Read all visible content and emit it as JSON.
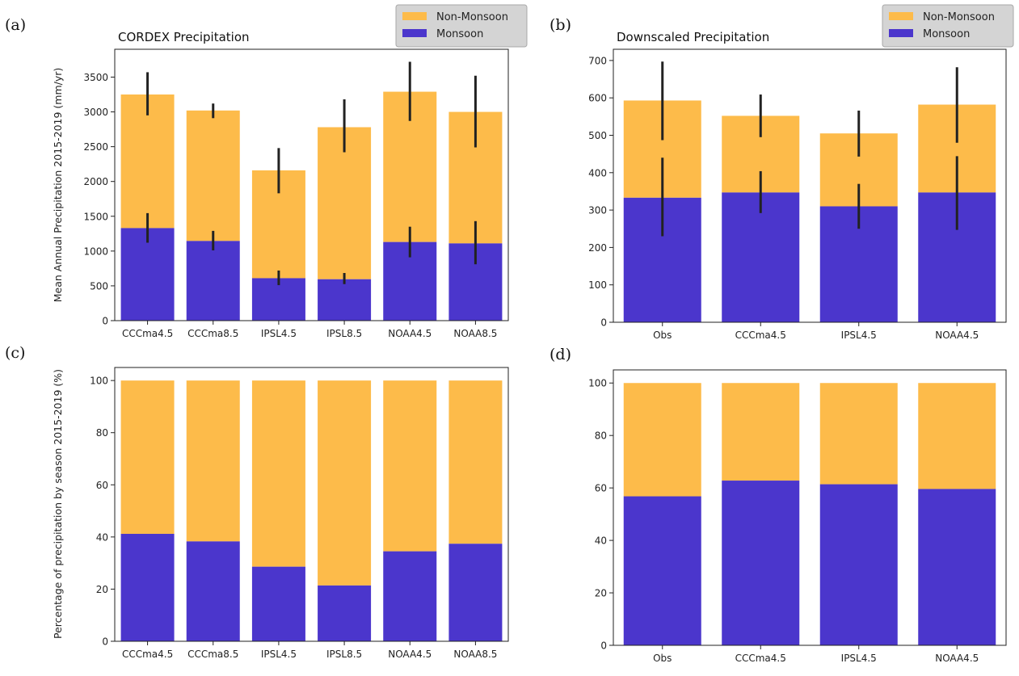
{
  "colors": {
    "monsoon": "#4b36cc",
    "non_monsoon": "#fdbb4a",
    "error_bar": "#222222",
    "legend_bg": "#d4d4d4"
  },
  "chart_data": [
    {
      "panel": "(a)",
      "type": "bar",
      "stacked": true,
      "title": "CORDEX Precipitation",
      "ylabel": "Mean Annual Precipitation 2015-2019 (mm/yr)",
      "xlabel": "",
      "ylim": [
        0,
        3900
      ],
      "yticks": [
        0,
        500,
        1000,
        1500,
        2000,
        2500,
        3000,
        3500
      ],
      "categories": [
        "CCCma4.5",
        "CCCma8.5",
        "IPSL4.5",
        "IPSL8.5",
        "NOAA4.5",
        "NOAA8.5"
      ],
      "legend": {
        "position": "upper-right",
        "entries": [
          "Non-Monsoon",
          "Monsoon"
        ]
      },
      "series": [
        {
          "name": "Monsoon",
          "values": [
            1330,
            1145,
            610,
            595,
            1130,
            1110
          ],
          "err_low": [
            1120,
            1010,
            510,
            525,
            910,
            810
          ],
          "err_high": [
            1545,
            1290,
            720,
            685,
            1350,
            1430
          ]
        },
        {
          "name": "Non-Monsoon",
          "totals": [
            3250,
            3020,
            2160,
            2780,
            3290,
            3000
          ],
          "err_low": [
            2950,
            2910,
            1830,
            2420,
            2870,
            2490
          ],
          "err_high": [
            3570,
            3120,
            2480,
            3180,
            3720,
            3520
          ]
        }
      ]
    },
    {
      "panel": "(b)",
      "type": "bar",
      "stacked": true,
      "title": "Downscaled Precipitation",
      "ylabel": "",
      "xlabel": "",
      "ylim": [
        0,
        730
      ],
      "yticks": [
        0,
        100,
        200,
        300,
        400,
        500,
        600,
        700
      ],
      "categories": [
        "Obs",
        "CCCma4.5",
        "IPSL4.5",
        "NOAA4.5"
      ],
      "legend": {
        "position": "upper-right",
        "entries": [
          "Non-Monsoon",
          "Monsoon"
        ]
      },
      "series": [
        {
          "name": "Monsoon",
          "values": [
            333,
            347,
            310,
            347
          ],
          "err_low": [
            230,
            292,
            250,
            247
          ],
          "err_high": [
            440,
            404,
            370,
            444
          ]
        },
        {
          "name": "Non-Monsoon",
          "totals": [
            593,
            552,
            505,
            582
          ],
          "err_low": [
            487,
            495,
            443,
            480
          ],
          "err_high": [
            697,
            609,
            566,
            682
          ]
        }
      ]
    },
    {
      "panel": "(c)",
      "type": "bar",
      "stacked": true,
      "title": "",
      "ylabel": "Percentage of precipitation by season 2015-2019 (%)",
      "xlabel": "",
      "ylim": [
        0,
        105
      ],
      "yticks": [
        0,
        20,
        40,
        60,
        80,
        100
      ],
      "categories": [
        "CCCma4.5",
        "CCCma8.5",
        "IPSL4.5",
        "IPSL8.5",
        "NOAA4.5",
        "NOAA8.5"
      ],
      "series": [
        {
          "name": "Monsoon",
          "values": [
            41.2,
            38.3,
            28.6,
            21.4,
            34.5,
            37.4
          ]
        },
        {
          "name": "Non-Monsoon",
          "totals": [
            100,
            100,
            100,
            100,
            100,
            100
          ]
        }
      ]
    },
    {
      "panel": "(d)",
      "type": "bar",
      "stacked": true,
      "title": "",
      "ylabel": "",
      "xlabel": "",
      "ylim": [
        0,
        105
      ],
      "yticks": [
        0,
        20,
        40,
        60,
        80,
        100
      ],
      "categories": [
        "Obs",
        "CCCma4.5",
        "IPSL4.5",
        "NOAA4.5"
      ],
      "series": [
        {
          "name": "Monsoon",
          "values": [
            56.8,
            62.8,
            61.4,
            59.6
          ]
        },
        {
          "name": "Non-Monsoon",
          "totals": [
            100,
            100,
            100,
            100
          ]
        }
      ]
    }
  ]
}
